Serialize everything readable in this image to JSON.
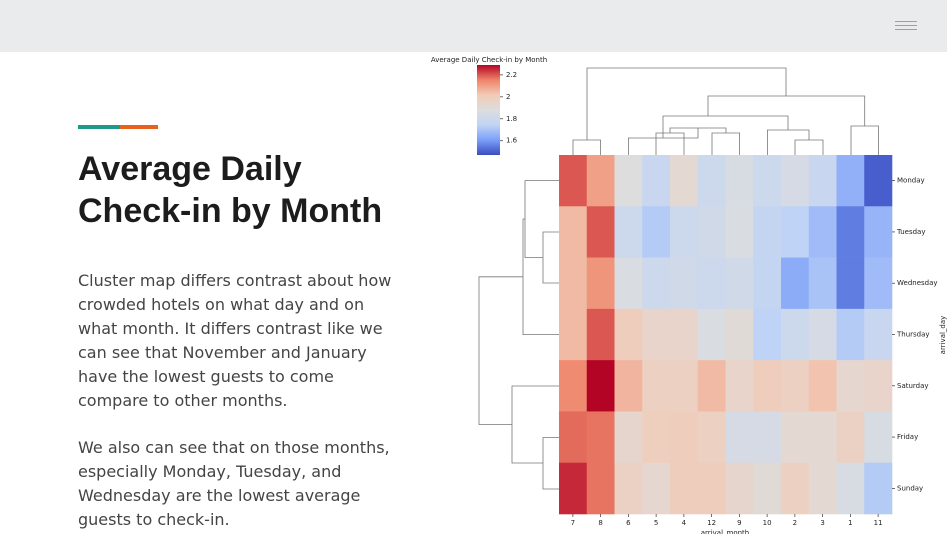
{
  "header": {},
  "slide": {
    "title": "Average Daily Check-in by Month",
    "paragraphs": [
      "Cluster map differs contrast about how crowded hotels on what day and on what month. It differs contrast like we can see that November and January have the lowest guests to come compare to other months.",
      "We also can see that on those months, especially Monday, Tuesday, and Wednesday are the lowest average guests to check-in."
    ]
  },
  "chart_data": {
    "type": "heatmap",
    "title": "Average Daily Check-in by Month",
    "x_label": "arrival_month",
    "y_label": "arrival_day",
    "categories": [
      "7",
      "8",
      "6",
      "5",
      "4",
      "12",
      "9",
      "10",
      "2",
      "3",
      "1",
      "11"
    ],
    "rows": [
      "Monday",
      "Tuesday",
      "Wednesday",
      "Thursday",
      "Saturday",
      "Friday",
      "Sunday"
    ],
    "values": [
      [
        2.2,
        2.1,
        1.88,
        1.78,
        1.92,
        1.8,
        1.85,
        1.8,
        1.84,
        1.78,
        1.65,
        1.5
      ],
      [
        2.05,
        2.2,
        1.8,
        1.72,
        1.8,
        1.82,
        1.86,
        1.76,
        1.74,
        1.68,
        1.55,
        1.66
      ],
      [
        2.05,
        2.12,
        1.86,
        1.8,
        1.82,
        1.8,
        1.82,
        1.76,
        1.64,
        1.7,
        1.55,
        1.68
      ],
      [
        2.05,
        2.2,
        2.0,
        1.95,
        1.95,
        1.86,
        1.9,
        1.74,
        1.8,
        1.84,
        1.72,
        1.78
      ],
      [
        2.14,
        2.29,
        2.06,
        1.98,
        1.98,
        2.05,
        1.95,
        2.0,
        1.98,
        2.03,
        1.93,
        1.95
      ],
      [
        2.18,
        2.17,
        1.94,
        1.99,
        2.0,
        1.98,
        1.84,
        1.84,
        1.92,
        1.92,
        1.97,
        1.85
      ],
      [
        2.25,
        2.17,
        1.97,
        1.93,
        2.0,
        2.0,
        1.94,
        1.9,
        1.98,
        1.92,
        1.85,
        1.72
      ]
    ],
    "clim": [
      1.47,
      2.29
    ],
    "cticks": [
      1.6,
      1.8,
      2.0,
      2.2
    ],
    "colorscale": [
      "#3b4cc0",
      "#7b9ff9",
      "#c0d4f5",
      "#dddddd",
      "#f2cbb7",
      "#ee8468",
      "#b40426"
    ]
  }
}
